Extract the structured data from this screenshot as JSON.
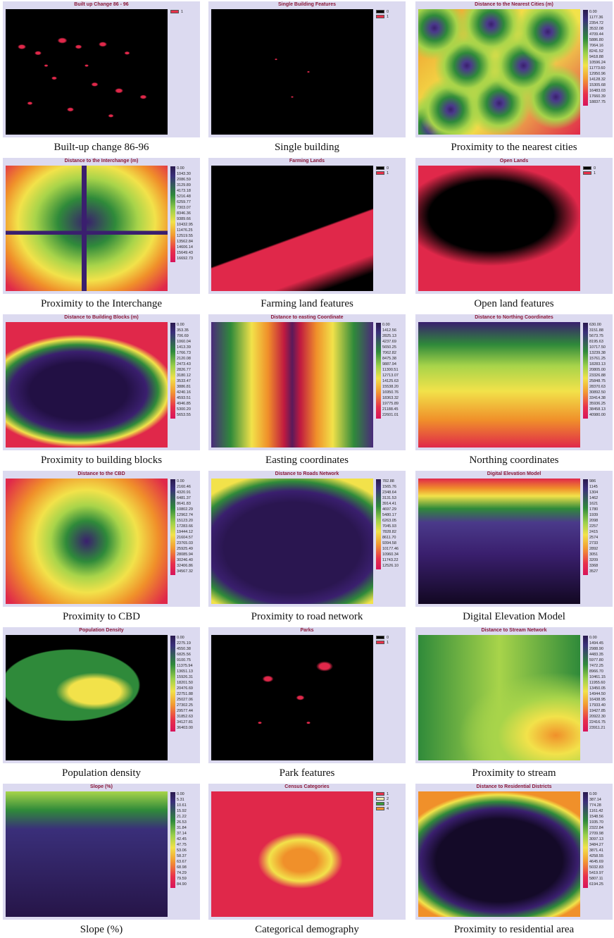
{
  "panels": [
    {
      "title": "Built up Change 86 - 96",
      "legend": [
        "1"
      ],
      "legend_colors": [
        "#e8304a"
      ],
      "caption": "Built-up change 86-96"
    },
    {
      "title": "Single Building Features",
      "legend": [
        "0",
        "1"
      ],
      "legend_colors": [
        "#000000",
        "#e8304a"
      ],
      "caption": "Single building"
    },
    {
      "title": "Distance to the Nearest Cities (m)",
      "legend": [
        "0.00",
        "1177.36",
        "2354.72",
        "3532.08",
        "4709.44",
        "5886.80",
        "7064.16",
        "8241.52",
        "9418.88",
        "10596.24",
        "11773.60",
        "12950.96",
        "14128.32",
        "15305.68",
        "16483.03",
        "17660.39",
        "18837.75"
      ],
      "caption": "Proximity to the nearest cities"
    },
    {
      "title": "Distance to the Interchange (m)",
      "legend": [
        "0.00",
        "1043.30",
        "2086.59",
        "3129.89",
        "4173.18",
        "5216.48",
        "6259.77",
        "7303.07",
        "8346.36",
        "9389.66",
        "10432.95",
        "11476.25",
        "12519.55",
        "13562.84",
        "14606.14",
        "15649.43",
        "16692.73"
      ],
      "caption": "Proximity to the Interchange"
    },
    {
      "title": "Farming Lands",
      "legend": [
        "0",
        "1"
      ],
      "legend_colors": [
        "#000000",
        "#e8304a"
      ],
      "caption": "Farming land features"
    },
    {
      "title": "Open Lands",
      "legend": [
        "0",
        "1"
      ],
      "legend_colors": [
        "#000000",
        "#e8304a"
      ],
      "caption": "Open land features"
    },
    {
      "title": "Distance to Building Blocks (m)",
      "legend": [
        "0.00",
        "353.35",
        "706.69",
        "1060.04",
        "1413.39",
        "1766.73",
        "2120.08",
        "2473.43",
        "2826.77",
        "3180.12",
        "3533.47",
        "3886.81",
        "4240.16",
        "4593.51",
        "4946.85",
        "5300.20",
        "5653.55"
      ],
      "caption": "Proximity to building blocks"
    },
    {
      "title": "Distance to  easting Coordinate",
      "legend": [
        "0.00",
        "1412.56",
        "2825.13",
        "4237.69",
        "5650.25",
        "7062.82",
        "8475.38",
        "9887.94",
        "11300.51",
        "12713.07",
        "14125.63",
        "15538.20",
        "16950.76",
        "18363.32",
        "19775.89",
        "21188.45",
        "22601.01"
      ],
      "caption": "Easting coordinates"
    },
    {
      "title": "Distance to Northing Coordinates",
      "legend": [
        "630.00",
        "3151.88",
        "5673.75",
        "8195.63",
        "10717.50",
        "13239.38",
        "15761.25",
        "18283.13",
        "20805.00",
        "23326.88",
        "25848.75",
        "28370.63",
        "30892.50",
        "33414.38",
        "35936.25",
        "38458.13",
        "40980.00"
      ],
      "caption": "Northing coordinates"
    },
    {
      "title": "Distance to the CBD",
      "legend": [
        "0.00",
        "2160.46",
        "4320.91",
        "6481.37",
        "8641.83",
        "10802.29",
        "12962.74",
        "15123.20",
        "17283.66",
        "19444.12",
        "21604.57",
        "23765.03",
        "25925.49",
        "28085.94",
        "30246.40",
        "32406.86",
        "34567.32"
      ],
      "caption": "Proximity to CBD"
    },
    {
      "title": "Distance to Roads Network",
      "legend": [
        "782.88",
        "1565.76",
        "2348.64",
        "3131.53",
        "3914.41",
        "4697.29",
        "5480.17",
        "6263.05",
        "7045.93",
        "7828.82",
        "8611.70",
        "9394.58",
        "10177.46",
        "10960.34",
        "11743.22",
        "12526.10"
      ],
      "caption": "Proximity to road network"
    },
    {
      "title": "Digital Elevation Model",
      "legend": [
        "986",
        "1145",
        "1304",
        "1462",
        "1621",
        "1780",
        "1939",
        "2098",
        "2257",
        "2415",
        "2574",
        "2733",
        "2892",
        "3051",
        "3209",
        "3368",
        "3527"
      ],
      "caption": "Digital Elevation Model"
    },
    {
      "title": "Population Density",
      "legend": [
        "0.00",
        "2275.19",
        "4550.38",
        "6825.56",
        "9100.75",
        "11375.94",
        "13651.13",
        "15926.31",
        "18201.50",
        "20476.69",
        "22751.88",
        "25027.06",
        "27302.25",
        "29577.44",
        "31852.63",
        "34127.81",
        "36403.00"
      ],
      "caption": "Population density"
    },
    {
      "title": "Parks",
      "legend": [
        "0",
        "1"
      ],
      "legend_colors": [
        "#000000",
        "#e8304a"
      ],
      "caption": "Park features"
    },
    {
      "title": "Distance to Stream Network",
      "legend": [
        "0.00",
        "1494.45",
        "2988.90",
        "4483.35",
        "5977.80",
        "7472.25",
        "8966.70",
        "10461.15",
        "11955.60",
        "13450.05",
        "14944.50",
        "16438.95",
        "17933.40",
        "19427.85",
        "20922.30",
        "22416.75",
        "23911.21"
      ],
      "caption": "Proximity to stream"
    },
    {
      "title": "Slope (%)",
      "legend": [
        "0.00",
        "5.31",
        "10.61",
        "15.92",
        "21.22",
        "26.53",
        "31.84",
        "37.14",
        "42.45",
        "47.75",
        "53.06",
        "58.37",
        "63.67",
        "68.98",
        "74.29",
        "79.59",
        "84.90"
      ],
      "caption": "Slope (%)"
    },
    {
      "title": "Census Categories",
      "legend": [
        "1",
        "2",
        "3",
        "4"
      ],
      "legend_colors": [
        "#e8304a",
        "#f4f0b0",
        "#3a9a3a",
        "#f0902a"
      ],
      "caption": "Categorical demography"
    },
    {
      "title": "Distance to Residential Districts",
      "legend": [
        "0.00",
        "387.14",
        "774.28",
        "1161.42",
        "1548.56",
        "1935.70",
        "2322.84",
        "2709.98",
        "3097.13",
        "3484.27",
        "3871.41",
        "4258.55",
        "4645.69",
        "5032.83",
        "5419.97",
        "5807.11",
        "6194.25"
      ],
      "caption": "Proximity to residential area"
    }
  ]
}
